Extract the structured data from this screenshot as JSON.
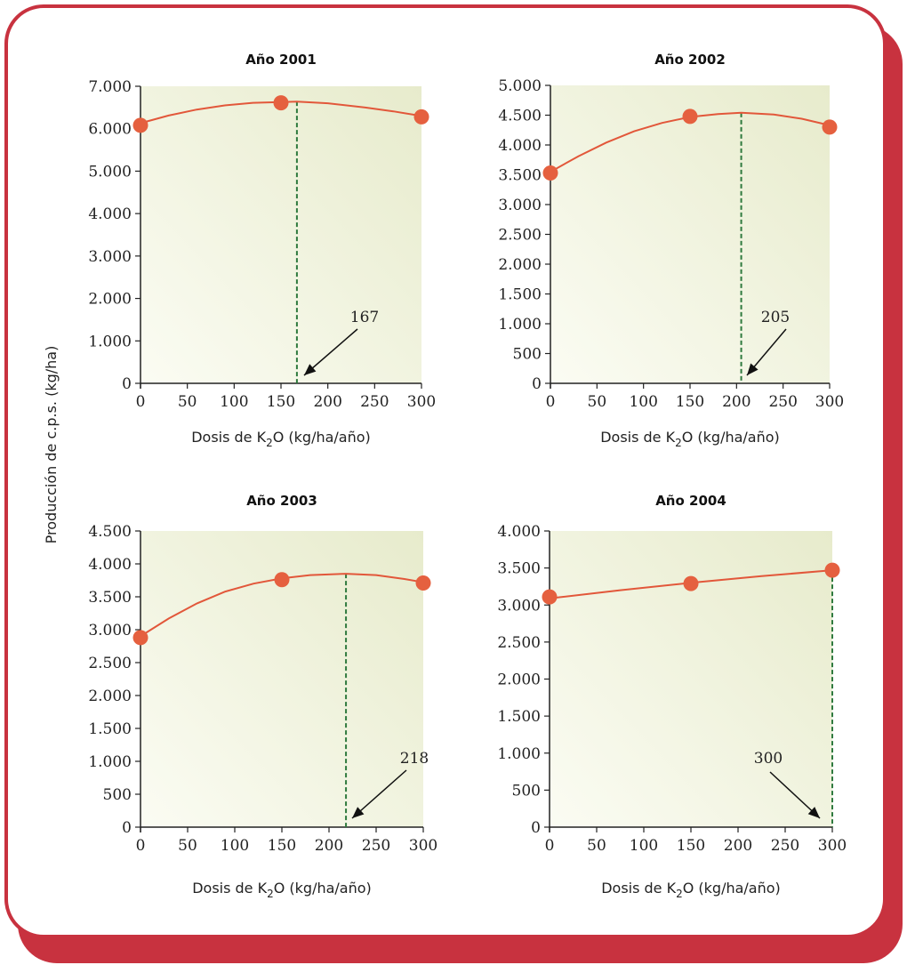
{
  "chart_data": {
    "ylabel": "Producción de c.p.s. (kg/ha)",
    "charts": [
      {
        "type": "line",
        "title": "Año 2001",
        "xlabel_pre": "Dosis de K",
        "xlabel_sub": "2",
        "xlabel_post": "O (kg/ha/año)",
        "xlim": [
          0,
          300
        ],
        "ylim": [
          0,
          7000
        ],
        "xticks": [
          0,
          50,
          100,
          150,
          200,
          250,
          300
        ],
        "xtick_labels": [
          "0",
          "50",
          "100",
          "150",
          "200",
          "250",
          "300"
        ],
        "yticks": [
          0,
          1000,
          2000,
          3000,
          4000,
          5000,
          6000,
          7000
        ],
        "ytick_labels": [
          "0",
          "1.000",
          "2.000",
          "3.000",
          "4.000",
          "5.000",
          "6.000",
          "7.000"
        ],
        "points": [
          {
            "x": 0,
            "y": 6080
          },
          {
            "x": 150,
            "y": 6610
          },
          {
            "x": 300,
            "y": 6280
          }
        ],
        "curve": [
          {
            "x": 0,
            "y": 6130
          },
          {
            "x": 30,
            "y": 6310
          },
          {
            "x": 60,
            "y": 6450
          },
          {
            "x": 90,
            "y": 6550
          },
          {
            "x": 120,
            "y": 6610
          },
          {
            "x": 167,
            "y": 6640
          },
          {
            "x": 200,
            "y": 6600
          },
          {
            "x": 240,
            "y": 6500
          },
          {
            "x": 270,
            "y": 6410
          },
          {
            "x": 300,
            "y": 6300
          }
        ],
        "optimum_x": 167,
        "annotation": "167"
      },
      {
        "type": "line",
        "title": "Año 2002",
        "xlabel_pre": "Dosis de K",
        "xlabel_sub": "2",
        "xlabel_post": "O (kg/ha/año)",
        "xlim": [
          0,
          300
        ],
        "ylim": [
          0,
          5000
        ],
        "xticks": [
          0,
          50,
          100,
          150,
          200,
          250,
          300
        ],
        "xtick_labels": [
          "0",
          "50",
          "100",
          "150",
          "200",
          "250",
          "300"
        ],
        "yticks": [
          0,
          500,
          1000,
          1500,
          2000,
          2500,
          3000,
          3500,
          4000,
          4500,
          5000
        ],
        "ytick_labels": [
          "0",
          "500",
          "1.000",
          "1.500",
          "2.000",
          "2.500",
          "3.000",
          "3.500",
          "4.000",
          "4.500",
          "5.000"
        ],
        "points": [
          {
            "x": 0,
            "y": 3530
          },
          {
            "x": 150,
            "y": 4480
          },
          {
            "x": 300,
            "y": 4300
          }
        ],
        "curve": [
          {
            "x": 0,
            "y": 3550
          },
          {
            "x": 30,
            "y": 3810
          },
          {
            "x": 60,
            "y": 4040
          },
          {
            "x": 90,
            "y": 4230
          },
          {
            "x": 120,
            "y": 4370
          },
          {
            "x": 150,
            "y": 4470
          },
          {
            "x": 180,
            "y": 4520
          },
          {
            "x": 205,
            "y": 4540
          },
          {
            "x": 240,
            "y": 4510
          },
          {
            "x": 270,
            "y": 4440
          },
          {
            "x": 300,
            "y": 4330
          }
        ],
        "optimum_x": 205,
        "annotation": "205"
      },
      {
        "type": "line",
        "title": "Año 2003",
        "xlabel_pre": "Dosis de K",
        "xlabel_sub": "2",
        "xlabel_post": "O (kg/ha/año)",
        "xlim": [
          0,
          300
        ],
        "ylim": [
          0,
          4500
        ],
        "xticks": [
          0,
          50,
          100,
          150,
          200,
          250,
          300
        ],
        "xtick_labels": [
          "0",
          "50",
          "100",
          "150",
          "200",
          "250",
          "300"
        ],
        "yticks": [
          0,
          500,
          1000,
          1500,
          2000,
          2500,
          3000,
          3500,
          4000,
          4500
        ],
        "ytick_labels": [
          "0",
          "500",
          "1.000",
          "1.500",
          "2.000",
          "2.500",
          "3.000",
          "3.500",
          "4.000",
          "4.500"
        ],
        "points": [
          {
            "x": 0,
            "y": 2880
          },
          {
            "x": 150,
            "y": 3760
          },
          {
            "x": 300,
            "y": 3710
          }
        ],
        "curve": [
          {
            "x": 0,
            "y": 2900
          },
          {
            "x": 30,
            "y": 3170
          },
          {
            "x": 60,
            "y": 3400
          },
          {
            "x": 90,
            "y": 3580
          },
          {
            "x": 120,
            "y": 3700
          },
          {
            "x": 150,
            "y": 3780
          },
          {
            "x": 180,
            "y": 3830
          },
          {
            "x": 218,
            "y": 3850
          },
          {
            "x": 250,
            "y": 3830
          },
          {
            "x": 280,
            "y": 3770
          },
          {
            "x": 300,
            "y": 3720
          }
        ],
        "optimum_x": 218,
        "annotation": "218"
      },
      {
        "type": "line",
        "title": "Año 2004",
        "xlabel_pre": "Dosis de K",
        "xlabel_sub": "2",
        "xlabel_post": "O (kg/ha/año)",
        "xlim": [
          0,
          300
        ],
        "ylim": [
          0,
          4000
        ],
        "xticks": [
          0,
          50,
          100,
          150,
          200,
          250,
          300
        ],
        "xtick_labels": [
          "0",
          "50",
          "100",
          "150",
          "200",
          "250",
          "300"
        ],
        "yticks": [
          0,
          500,
          1000,
          1500,
          2000,
          2500,
          3000,
          3500,
          4000
        ],
        "ytick_labels": [
          "0",
          "500",
          "1.000",
          "1.500",
          "2.000",
          "2.500",
          "3.000",
          "3.500",
          "4.000"
        ],
        "points": [
          {
            "x": 0,
            "y": 3110
          },
          {
            "x": 150,
            "y": 3290
          },
          {
            "x": 300,
            "y": 3470
          }
        ],
        "curve": [
          {
            "x": 0,
            "y": 3090
          },
          {
            "x": 75,
            "y": 3200
          },
          {
            "x": 150,
            "y": 3300
          },
          {
            "x": 225,
            "y": 3390
          },
          {
            "x": 300,
            "y": 3470
          }
        ],
        "optimum_x": 300,
        "annotation": "300"
      }
    ]
  },
  "colors": {
    "frame": "#c8323f",
    "curve": "#e2573a",
    "point": "#e5603f",
    "optimum_line": "#2f7a3e",
    "plot_bg_light": "#fbfcf3",
    "plot_bg_dark": "#e7ebcc"
  }
}
